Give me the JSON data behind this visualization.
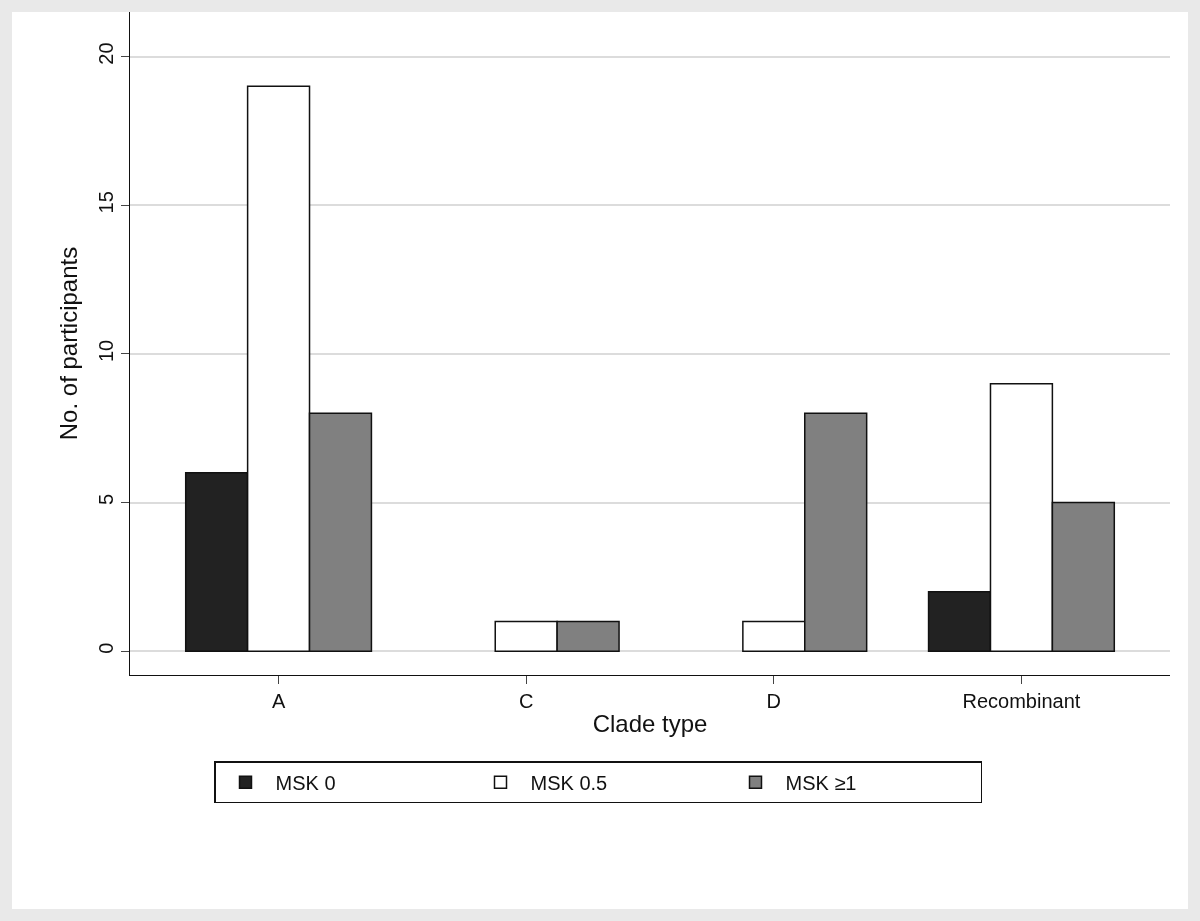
{
  "chart_data": {
    "type": "bar",
    "xlabel": "Clade type",
    "ylabel": "No. of participants",
    "categories": [
      "A",
      "C",
      "D",
      "Recombinant"
    ],
    "series": [
      {
        "name": "MSK 0",
        "color": "#222222",
        "values": [
          6,
          0,
          0,
          2
        ]
      },
      {
        "name": "MSK 0.5",
        "color": "#ffffff",
        "values": [
          19,
          1,
          1,
          9
        ]
      },
      {
        "name": "MSK ≥1",
        "color": "#808080",
        "values": [
          8,
          1,
          8,
          5
        ]
      }
    ],
    "ylim": [
      -0.8,
      21.5
    ],
    "yticks": [
      0,
      5,
      10,
      15,
      20
    ],
    "grid": "y",
    "legend": "bottom"
  }
}
